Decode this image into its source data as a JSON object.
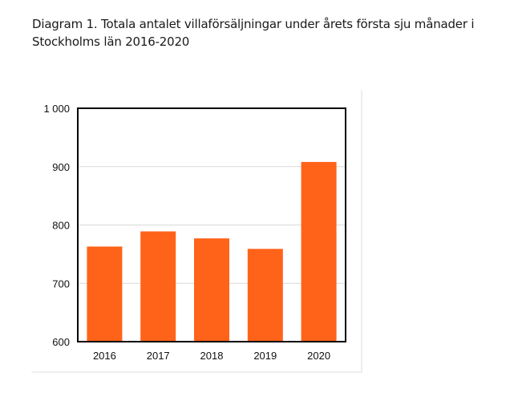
{
  "title": "Diagram 1. Totala antalet villaförsäljningar under årets första sju månader i Stockholms län 2016-2020",
  "chart_data": {
    "type": "bar",
    "categories": [
      "2016",
      "2017",
      "2018",
      "2019",
      "2020"
    ],
    "values": [
      763,
      789,
      777,
      759,
      908
    ],
    "ylim": [
      600,
      1000
    ],
    "yticks": [
      600,
      700,
      800,
      900,
      1000
    ],
    "ytick_labels": [
      "600",
      "700",
      "800",
      "900",
      "1 000"
    ],
    "grid": true,
    "bar_color": "#ff6319",
    "grid_color": "#d9d9d9"
  }
}
